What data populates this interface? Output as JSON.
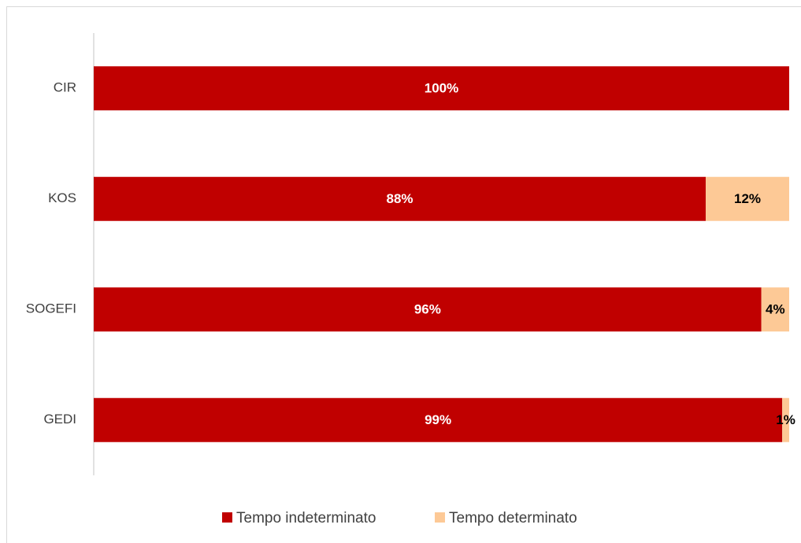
{
  "chart_data": {
    "type": "stacked-bar-horizontal",
    "categories": [
      "CIR",
      "KOS",
      "SOGEFI",
      "GEDI"
    ],
    "series": [
      {
        "name": "Tempo indeterminato",
        "color": "#c00000",
        "values": [
          100,
          88,
          96,
          99
        ],
        "value_labels": [
          "100%",
          "88%",
          "96%",
          "99%"
        ]
      },
      {
        "name": "Tempo determinato",
        "color": "#fdc996",
        "values": [
          0,
          12,
          4,
          1
        ],
        "value_labels": [
          null,
          "12%",
          "4%",
          "1%"
        ]
      }
    ],
    "xlim": [
      0,
      100
    ],
    "legend": "bottom"
  }
}
